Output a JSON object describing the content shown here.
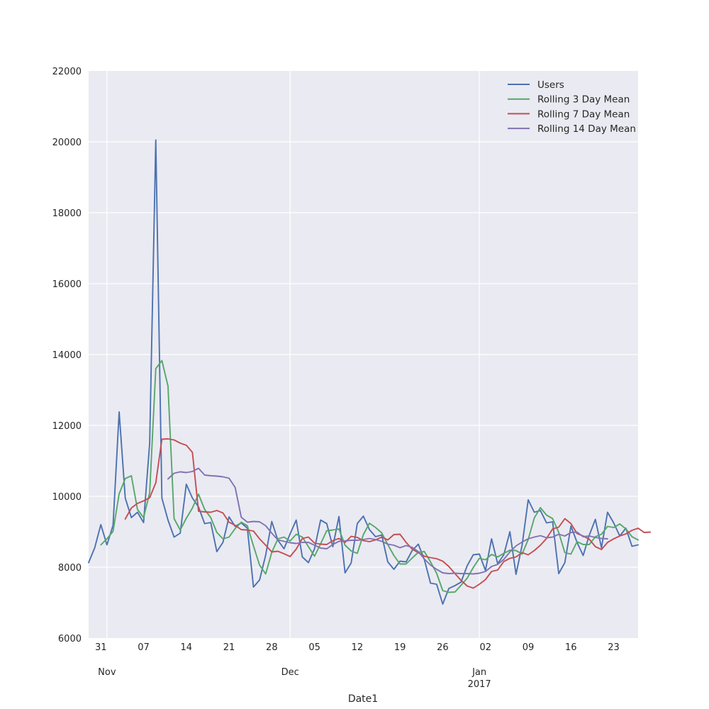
{
  "chart_data": {
    "type": "line",
    "title": "",
    "xlabel": "Date1",
    "ylabel": "",
    "x_start": "2016-10-29",
    "x_end": "2017-01-27",
    "ylim": [
      6000,
      22000
    ],
    "yticks": [
      6000,
      8000,
      10000,
      12000,
      14000,
      16000,
      18000,
      20000,
      22000
    ],
    "x_minor_ticks": [
      {
        "date": "2016-10-31",
        "label": "31"
      },
      {
        "date": "2016-11-07",
        "label": "07"
      },
      {
        "date": "2016-11-14",
        "label": "14"
      },
      {
        "date": "2016-11-21",
        "label": "21"
      },
      {
        "date": "2016-11-28",
        "label": "28"
      },
      {
        "date": "2016-12-05",
        "label": "05"
      },
      {
        "date": "2016-12-12",
        "label": "12"
      },
      {
        "date": "2016-12-19",
        "label": "19"
      },
      {
        "date": "2016-12-26",
        "label": "26"
      },
      {
        "date": "2017-01-02",
        "label": "02"
      },
      {
        "date": "2017-01-09",
        "label": "09"
      },
      {
        "date": "2017-01-16",
        "label": "16"
      },
      {
        "date": "2017-01-23",
        "label": "23"
      }
    ],
    "x_major_ticks": [
      {
        "date": "2016-11-01",
        "label": "Nov"
      },
      {
        "date": "2016-12-01",
        "label": "Dec"
      },
      {
        "date": "2017-01-01",
        "label": "Jan",
        "sublabel": "2017"
      }
    ],
    "grid": true,
    "legend_position": "top-right",
    "series": [
      {
        "name": "Users",
        "color": "#4c72b0",
        "start": "2016-10-29",
        "values": [
          8130,
          8550,
          9200,
          8630,
          9180,
          12380,
          9950,
          9400,
          9550,
          9260,
          11500,
          20050,
          9950,
          9330,
          8850,
          8960,
          10340,
          9950,
          9700,
          9230,
          9260,
          8440,
          8700,
          9420,
          9150,
          9250,
          9100,
          7440,
          7640,
          8340,
          9290,
          8760,
          8520,
          8940,
          9330,
          8290,
          8130,
          8520,
          9330,
          9230,
          8580,
          9430,
          7840,
          8120,
          9230,
          9440,
          9060,
          8860,
          8910,
          8150,
          7940,
          8170,
          8150,
          8470,
          8650,
          8210,
          7550,
          7520,
          6960,
          7400,
          7480,
          7580,
          8040,
          8350,
          8370,
          7910,
          8800,
          8100,
          8350,
          9000,
          7800,
          8620,
          9900,
          9550,
          9600,
          9250,
          9280,
          7820,
          8130,
          9160,
          8700,
          8330,
          8900,
          9350,
          8550,
          9550,
          9250,
          8880,
          9100,
          8590,
          8630
        ]
      },
      {
        "name": "Rolling 3 Day Mean",
        "color": "#55a868",
        "start": "2016-10-31",
        "values": [
          8630,
          8800,
          9010,
          10070,
          10500,
          10580,
          9630,
          9400,
          10100,
          13600,
          13830,
          13110,
          9370,
          9050,
          9380,
          9670,
          10060,
          9630,
          9400,
          8980,
          8800,
          8850,
          9090,
          9270,
          9170,
          8600,
          8060,
          7810,
          8420,
          8800,
          8850,
          8740,
          8930,
          8850,
          8580,
          8310,
          8660,
          9030,
          9050,
          9080,
          8620,
          8460,
          8390,
          8920,
          9240,
          9120,
          8970,
          8640,
          8330,
          8090,
          8090,
          8260,
          8420,
          8440,
          8150,
          7830,
          7340,
          7290,
          7300,
          7490,
          7690,
          7990,
          8250,
          8210,
          8360,
          8290,
          8390,
          8480,
          8470,
          8370,
          8780,
          9390,
          9680,
          9470,
          9370,
          8980,
          8410,
          8370,
          8720,
          8640,
          8640,
          8860,
          8930,
          9150,
          9120,
          9220,
          9080,
          8860,
          8770
        ]
      },
      {
        "name": "Rolling 7 Day Mean",
        "color": "#c44e52",
        "start": "2016-11-04",
        "values": [
          9360,
          9670,
          9800,
          9870,
          9960,
          10380,
          11610,
          11620,
          11590,
          11500,
          11440,
          11240,
          9580,
          9560,
          9550,
          9600,
          9530,
          9270,
          9180,
          9060,
          9050,
          9020,
          8800,
          8620,
          8430,
          8450,
          8380,
          8300,
          8510,
          8810,
          8850,
          8680,
          8650,
          8640,
          8750,
          8810,
          8700,
          8870,
          8840,
          8750,
          8720,
          8770,
          8850,
          8770,
          8920,
          8930,
          8700,
          8510,
          8410,
          8310,
          8270,
          8240,
          8170,
          8020,
          7820,
          7630,
          7470,
          7410,
          7520,
          7650,
          7880,
          7920,
          8160,
          8250,
          8290,
          8410,
          8350,
          8470,
          8620,
          8810,
          9080,
          9130,
          9370,
          9230,
          8950,
          8880,
          8790,
          8580,
          8500,
          8700,
          8800,
          8880,
          8940,
          9040,
          9100,
          8980,
          8990
        ]
      },
      {
        "name": "Rolling 14 Day Mean",
        "color": "#8172b2",
        "start": "2016-11-11",
        "values": [
          10490,
          10650,
          10690,
          10670,
          10700,
          10790,
          10600,
          10580,
          10570,
          10550,
          10510,
          10250,
          9410,
          9270,
          9290,
          9280,
          9170,
          8960,
          8770,
          8730,
          8690,
          8670,
          8700,
          8700,
          8620,
          8540,
          8520,
          8640,
          8730,
          8740,
          8760,
          8760,
          8780,
          8810,
          8780,
          8730,
          8650,
          8620,
          8550,
          8610,
          8560,
          8440,
          8230,
          8060,
          7940,
          7840,
          7820,
          7830,
          7820,
          7820,
          7810,
          7830,
          7880,
          8020,
          8080,
          8220,
          8430,
          8600,
          8710,
          8800,
          8850,
          8890,
          8830,
          8850,
          8930,
          8880,
          8980,
          8990,
          8860,
          8880,
          8840,
          8810,
          8800
        ]
      }
    ]
  }
}
